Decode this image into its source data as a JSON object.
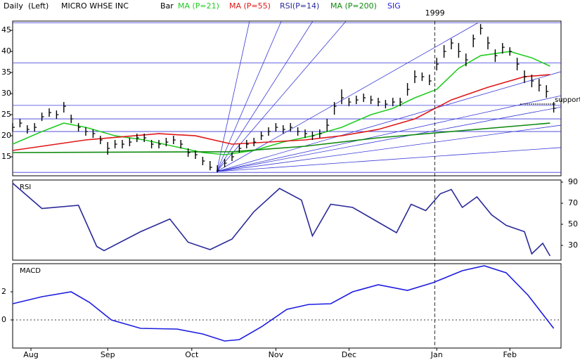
{
  "chart_data": [
    {
      "type": "ohlc",
      "period": "Daily",
      "side": "(Left)",
      "title": "MICRO WHSE INC",
      "style": "Bar",
      "color": "#000000",
      "x": [
        0,
        2,
        4,
        6,
        8,
        10,
        12,
        14,
        16,
        18,
        20,
        22,
        24,
        26,
        28,
        30,
        32,
        34,
        36,
        38,
        40,
        42,
        44,
        46,
        48,
        50,
        52,
        54,
        56,
        58,
        60,
        62,
        64,
        66,
        68,
        70,
        72,
        74,
        76,
        78,
        80,
        82,
        84,
        86,
        88,
        90,
        92,
        94,
        96,
        98,
        100,
        102,
        104,
        106,
        108,
        110,
        112,
        114,
        116,
        118,
        120,
        122,
        124,
        126,
        128,
        130,
        132,
        134,
        136,
        138,
        140,
        142,
        144,
        146,
        148
      ],
      "high": [
        23,
        24,
        22.5,
        23,
        25.5,
        26.5,
        26,
        28,
        25,
        23,
        22,
        21.5,
        20,
        18.5,
        19,
        19,
        19.5,
        20.5,
        20.5,
        19,
        19,
        19.5,
        20,
        19,
        17,
        16.5,
        15,
        14,
        13,
        14.5,
        16,
        18,
        19,
        19.5,
        21,
        22,
        23,
        22.5,
        23,
        22,
        21.5,
        21,
        21.5,
        24,
        28,
        31,
        29,
        29.5,
        30,
        29.5,
        29,
        28.5,
        29,
        29,
        32.5,
        35.5,
        35,
        34.5,
        38.5,
        41.5,
        43,
        42,
        39.5,
        44,
        46.5,
        43.5,
        40.5,
        42,
        41,
        38.5,
        35.5,
        34.5,
        33.5,
        32,
        28
      ],
      "low": [
        21,
        22,
        20.5,
        21,
        23.5,
        24.5,
        24,
        25.5,
        23,
        21,
        20,
        19.5,
        18,
        15.5,
        17,
        17,
        17.5,
        18.5,
        18.5,
        17,
        17,
        17.5,
        18,
        17,
        15,
        14.5,
        13,
        11.8,
        11.3,
        12.5,
        14,
        16,
        17,
        17.5,
        19,
        20,
        21,
        20.5,
        21,
        20,
        19.5,
        19,
        19.5,
        21,
        25,
        27.5,
        27,
        27.5,
        28,
        27.5,
        27,
        26.5,
        27,
        27,
        29.5,
        32.5,
        33,
        32,
        35.5,
        38.5,
        40.5,
        38.5,
        36.5,
        41,
        44,
        40.5,
        37.5,
        39.5,
        39,
        35.5,
        32.5,
        31.5,
        30.5,
        29,
        25.5
      ],
      "close": [
        22,
        23,
        21.5,
        22,
        24.5,
        25.5,
        25,
        27,
        24,
        22,
        21,
        20.5,
        19,
        17,
        18,
        18,
        18.5,
        19.5,
        19.5,
        18,
        18,
        18.5,
        19,
        18,
        16,
        15.5,
        14,
        12.5,
        11.8,
        13.5,
        15,
        17,
        18,
        18.5,
        20,
        21,
        22,
        21.5,
        22,
        21,
        20.5,
        20,
        20.5,
        22.5,
        27,
        29,
        28,
        28.5,
        29,
        28.5,
        28,
        27.5,
        28,
        28,
        31,
        34,
        34,
        33,
        37,
        40,
        42,
        40,
        38,
        43,
        45.5,
        42,
        39,
        41,
        40,
        37,
        34,
        33,
        32,
        30.5,
        26.5
      ],
      "series": [
        {
          "name": "MA (P=21)",
          "color": "#22cc22",
          "x": [
            0,
            8,
            14,
            20,
            28,
            36,
            44,
            52,
            58,
            66,
            74,
            82,
            90,
            98,
            104,
            110,
            116,
            122,
            128,
            136,
            142,
            147
          ],
          "values": [
            18,
            21,
            23,
            22,
            20,
            19,
            17.5,
            16,
            15.5,
            16.5,
            18.5,
            20,
            22,
            25,
            26.5,
            29,
            31,
            36,
            39,
            40,
            38.5,
            36.5
          ]
        },
        {
          "name": "MA (P=55)",
          "color": "#e01818",
          "x": [
            0,
            20,
            40,
            50,
            60,
            70,
            80,
            90,
            100,
            110,
            120,
            130,
            140,
            147
          ],
          "values": [
            16.5,
            19,
            20.5,
            20,
            18,
            18.5,
            19,
            20,
            21.5,
            24,
            28.5,
            31.5,
            34,
            34.5
          ]
        },
        {
          "name": "MA (P=200)",
          "color": "#108a10",
          "x": [
            0,
            60,
            80,
            100,
            120,
            147
          ],
          "values": [
            16,
            16.2,
            17.5,
            19.5,
            21,
            23
          ]
        }
      ],
      "levels": [
        46.8,
        37.3,
        27.2,
        24,
        21,
        11.3
      ],
      "fan": {
        "color": "#3a3ad8",
        "origin": {
          "x": 55.8,
          "y": 11.5
        },
        "ends": [
          {
            "x": 64.8,
            "y": 47.2
          },
          {
            "x": 73.5,
            "y": 47.2
          },
          {
            "x": 82.1,
            "y": 47.2
          },
          {
            "x": 91.2,
            "y": 47.2
          },
          {
            "x": 127.3,
            "y": 46.8
          },
          {
            "x": 150,
            "y": 35.2
          },
          {
            "x": 150,
            "y": 29.5
          },
          {
            "x": 150,
            "y": 26.8
          },
          {
            "x": 150,
            "y": 22.5
          },
          {
            "x": 150,
            "y": 17.2
          }
        ]
      },
      "annotation": "support",
      "vline": {
        "x": 115.5,
        "label": "1999"
      },
      "ylim": [
        10.5,
        47.2
      ],
      "yticks": [
        15,
        20,
        25,
        30,
        35,
        40,
        45
      ]
    },
    {
      "type": "line",
      "label": "RSI",
      "series": [
        {
          "name": "RSI(P=14)",
          "color": "#2a2a9a",
          "x": [
            0,
            8,
            18,
            23,
            25,
            35,
            43,
            48,
            54,
            60,
            66,
            73,
            79,
            82,
            87,
            93,
            98,
            105,
            109,
            113,
            117,
            120,
            123,
            127,
            131,
            135,
            140,
            142,
            145,
            147
          ],
          "values": [
            89,
            65,
            68,
            29,
            25,
            43,
            55,
            33,
            26,
            36,
            62,
            84,
            73,
            39,
            69,
            66,
            56,
            42,
            69,
            63,
            79,
            83,
            66,
            76,
            59,
            49,
            43,
            22,
            32,
            20
          ]
        }
      ],
      "ylim": [
        16,
        92
      ],
      "yticks": [
        30,
        50,
        70,
        90
      ]
    },
    {
      "type": "line",
      "label": "MACD",
      "series": [
        {
          "name": "SIG",
          "color": "#1c1ce0",
          "x": [
            0,
            8,
            16,
            21,
            27,
            35,
            45,
            52,
            58,
            62,
            68,
            75,
            81,
            87,
            93,
            100,
            108,
            115,
            123,
            129,
            135,
            141,
            148
          ],
          "values": [
            1.15,
            1.65,
            2.0,
            1.25,
            0,
            -0.6,
            -0.65,
            -1.0,
            -1.5,
            -1.4,
            -0.5,
            0.75,
            1.1,
            1.15,
            2.0,
            2.5,
            2.1,
            2.65,
            3.5,
            3.85,
            3.35,
            1.75,
            -0.6
          ]
        }
      ],
      "zero_line": true,
      "ylim": [
        -2,
        4
      ],
      "yticks": [
        0,
        2
      ],
      "xlim": [
        0,
        150
      ],
      "xticks": [
        {
          "value": 5,
          "label": "Aug"
        },
        {
          "value": 26,
          "label": "Sep"
        },
        {
          "value": 49,
          "label": "Oct"
        },
        {
          "value": 72,
          "label": "Nov"
        },
        {
          "value": 92,
          "label": "Dec"
        },
        {
          "value": 116,
          "label": "Jan"
        },
        {
          "value": 136,
          "label": "Feb"
        }
      ]
    }
  ]
}
